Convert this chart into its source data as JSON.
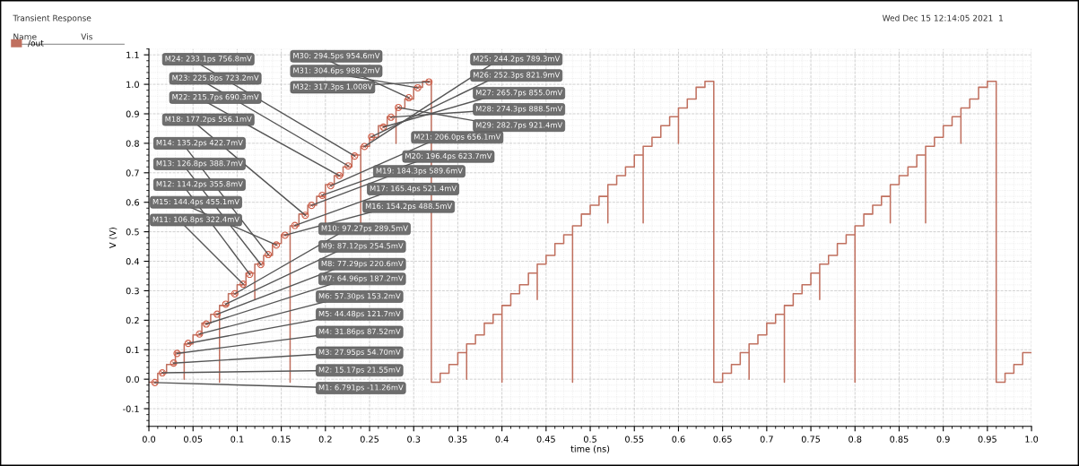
{
  "chart_data": {
    "type": "step",
    "title": "Transient Response",
    "xlabel": "time (ns)",
    "ylabel": "V (V)",
    "x": [
      0,
      0.01,
      0.02,
      0.03,
      0.04,
      0.04,
      0.05,
      0.06,
      0.07,
      0.08,
      0.08,
      0.09,
      0.1,
      0.11,
      0.12,
      0.12,
      0.13,
      0.14,
      0.15,
      0.16,
      0.16,
      0.17,
      0.18,
      0.19,
      0.2,
      0.2,
      0.21,
      0.22,
      0.23,
      0.24,
      0.24,
      0.25,
      0.26,
      0.27,
      0.28,
      0.28,
      0.29,
      0.3,
      0.31,
      0.32,
      0.33,
      0.34,
      0.35,
      0.36,
      0.36,
      0.37,
      0.38,
      0.39,
      0.4,
      0.4,
      0.41,
      0.42,
      0.43,
      0.44,
      0.44,
      0.45,
      0.46,
      0.47,
      0.48,
      0.48,
      0.49,
      0.5,
      0.51,
      0.52,
      0.52,
      0.53,
      0.54,
      0.55,
      0.56,
      0.56,
      0.57,
      0.58,
      0.59,
      0.6,
      0.6,
      0.61,
      0.62,
      0.63,
      0.64,
      0.65,
      0.66,
      0.67,
      0.68,
      0.68,
      0.69,
      0.7,
      0.71,
      0.72,
      0.72,
      0.73,
      0.74,
      0.75,
      0.76,
      0.76,
      0.77,
      0.78,
      0.79,
      0.8,
      0.8,
      0.81,
      0.82,
      0.83,
      0.84,
      0.84,
      0.85,
      0.86,
      0.87,
      0.88,
      0.88,
      0.89,
      0.9,
      0.91,
      0.92,
      0.92,
      0.93,
      0.94,
      0.95,
      0.96,
      0.97,
      0.98,
      0.99,
      1.0
    ],
    "series": [
      {
        "name": "/out",
        "color": "#c0705f",
        "values": [
          -0.01,
          0.02,
          0.05,
          0.09,
          0.0,
          0.12,
          0.15,
          0.19,
          0.22,
          -0.01,
          0.25,
          0.29,
          0.32,
          0.36,
          0.27,
          0.39,
          0.42,
          0.46,
          0.49,
          -0.01,
          0.52,
          0.56,
          0.59,
          0.62,
          0.53,
          0.66,
          0.69,
          0.72,
          0.76,
          0.53,
          0.79,
          0.82,
          0.86,
          0.89,
          0.8,
          0.92,
          0.95,
          0.99,
          1.01,
          -0.01,
          0.02,
          0.05,
          0.09,
          0.0,
          0.12,
          0.15,
          0.19,
          0.22,
          -0.01,
          0.25,
          0.29,
          0.32,
          0.36,
          0.27,
          0.39,
          0.42,
          0.46,
          0.49,
          -0.01,
          0.52,
          0.56,
          0.59,
          0.62,
          0.53,
          0.66,
          0.69,
          0.72,
          0.76,
          0.53,
          0.79,
          0.82,
          0.86,
          0.89,
          0.8,
          0.92,
          0.95,
          0.99,
          1.01,
          -0.01,
          0.02,
          0.05,
          0.09,
          0.0,
          0.12,
          0.15,
          0.19,
          0.22,
          -0.01,
          0.25,
          0.29,
          0.32,
          0.36,
          0.27,
          0.39,
          0.42,
          0.46,
          0.49,
          -0.01,
          0.52,
          0.56,
          0.59,
          0.62,
          0.53,
          0.66,
          0.69,
          0.72,
          0.76,
          0.53,
          0.79,
          0.82,
          0.86,
          0.89,
          0.8,
          0.92,
          0.95,
          0.99,
          1.01,
          -0.01,
          0.02,
          0.05,
          0.09,
          0.09
        ]
      }
    ],
    "xlim": [
      0,
      1.0
    ],
    "xticks": [
      {
        "value": 0,
        "label": "0.0"
      },
      0.05,
      0.1,
      0.15,
      0.2,
      0.25,
      0.3,
      0.35,
      0.4,
      0.45,
      0.5,
      0.55,
      0.6,
      0.65,
      0.7,
      0.75,
      0.8,
      0.85,
      0.9,
      0.95,
      {
        "value": 1.0,
        "label": "1.0"
      }
    ],
    "ylim": [
      -0.16,
      1.12
    ],
    "yticks": [
      -0.1,
      {
        "value": 0,
        "label": "0.0"
      },
      0.1,
      0.2,
      0.3,
      0.4,
      0.5,
      0.6,
      0.7,
      0.8,
      0.9,
      {
        "value": 1.0,
        "label": "1.0"
      },
      1.1
    ],
    "grid": true,
    "legend": "left",
    "line_style": "solid",
    "annotations": [
      {
        "text": "M1: 6.791ps -11.26mV",
        "x": 0.0068,
        "y": -0.01126
      },
      {
        "text": "M2: 15.17ps 21.55mV",
        "x": 0.0152,
        "y": 0.02155
      },
      {
        "text": "M3: 27.95ps 54.70mV",
        "x": 0.028,
        "y": 0.0547
      },
      {
        "text": "M4: 31.86ps 87.52mV",
        "x": 0.0319,
        "y": 0.08752
      },
      {
        "text": "M5: 44.48ps 121.7mV",
        "x": 0.0445,
        "y": 0.1217
      },
      {
        "text": "M6: 57.30ps 153.2mV",
        "x": 0.0573,
        "y": 0.1532
      },
      {
        "text": "M7: 64.96ps 187.2mV",
        "x": 0.065,
        "y": 0.1872
      },
      {
        "text": "M8: 77.29ps 220.6mV",
        "x": 0.0773,
        "y": 0.2206
      },
      {
        "text": "M9: 87.12ps 254.5mV",
        "x": 0.0871,
        "y": 0.2545
      },
      {
        "text": "M10: 97.27ps 289.5mV",
        "x": 0.0973,
        "y": 0.2895
      },
      {
        "text": "M11: 106.8ps 322.4mV",
        "x": 0.1068,
        "y": 0.3224
      },
      {
        "text": "M12: 114.2ps 355.8mV",
        "x": 0.1142,
        "y": 0.3558
      },
      {
        "text": "M13: 126.8ps 388.7mV",
        "x": 0.1268,
        "y": 0.3887
      },
      {
        "text": "M14: 135.2ps 422.7mV",
        "x": 0.1352,
        "y": 0.4227
      },
      {
        "text": "M15: 144.4ps 455.1mV",
        "x": 0.1444,
        "y": 0.4551
      },
      {
        "text": "M16: 154.2ps 488.5mV",
        "x": 0.1542,
        "y": 0.4885
      },
      {
        "text": "M17: 165.4ps 521.4mV",
        "x": 0.1654,
        "y": 0.5214
      },
      {
        "text": "M18: 177.2ps 556.1mV",
        "x": 0.1772,
        "y": 0.5561
      },
      {
        "text": "M19: 184.3ps 589.6mV",
        "x": 0.1843,
        "y": 0.5896
      },
      {
        "text": "M20: 196.4ps 623.7mV",
        "x": 0.1964,
        "y": 0.6237
      },
      {
        "text": "M21: 206.0ps 656.1mV",
        "x": 0.206,
        "y": 0.6561
      },
      {
        "text": "M22: 215.7ps 690.3mV",
        "x": 0.2157,
        "y": 0.6903
      },
      {
        "text": "M23: 225.8ps 723.2mV",
        "x": 0.2258,
        "y": 0.7232
      },
      {
        "text": "M24: 233.1ps 756.8mV",
        "x": 0.2331,
        "y": 0.7568
      },
      {
        "text": "M25: 244.2ps 789.3mV",
        "x": 0.2442,
        "y": 0.7893
      },
      {
        "text": "M26: 252.3ps 821.9mV",
        "x": 0.2523,
        "y": 0.8219
      },
      {
        "text": "M27: 265.7ps 855.0mV",
        "x": 0.2657,
        "y": 0.855
      },
      {
        "text": "M28: 274.3ps 888.5mV",
        "x": 0.2743,
        "y": 0.8885
      },
      {
        "text": "M29: 282.7ps 921.4mV",
        "x": 0.2827,
        "y": 0.9214
      },
      {
        "text": "M30: 294.5ps 954.6mV",
        "x": 0.2945,
        "y": 0.9546
      },
      {
        "text": "M31: 304.6ps 988.2mV",
        "x": 0.3046,
        "y": 0.9882
      },
      {
        "text": "M32: 317.3ps 1.008V",
        "x": 0.3173,
        "y": 1.008
      },
      "Wed Dec 15 12:14:05 2021  1",
      "Name",
      "Vis"
    ]
  }
}
